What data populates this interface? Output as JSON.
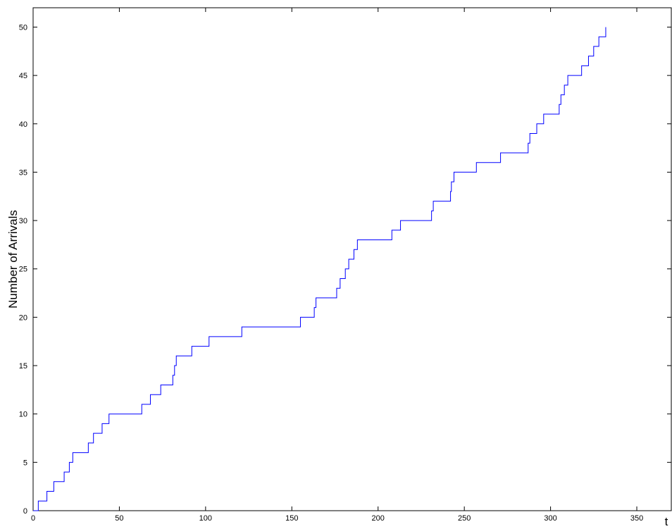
{
  "chart_data": {
    "type": "line",
    "step": true,
    "xlabel": "t",
    "ylabel": "Number of Arrivals",
    "xlim": [
      0,
      370
    ],
    "ylim": [
      0,
      52
    ],
    "xticks": [
      0,
      50,
      100,
      150,
      200,
      250,
      300,
      350
    ],
    "yticks": [
      0,
      5,
      10,
      15,
      20,
      25,
      30,
      35,
      40,
      45,
      50
    ],
    "grid": false,
    "colors": {
      "line": "#0000ff",
      "axes": "#000000",
      "background": "#ffffff"
    },
    "series": [
      {
        "x": [
          0,
          3,
          8,
          12,
          18,
          21,
          23,
          32,
          35,
          40,
          44,
          63,
          68,
          74,
          81,
          82,
          83,
          92,
          102,
          121,
          155,
          163,
          164,
          176,
          178,
          181,
          183,
          186,
          188,
          189,
          208,
          213,
          231,
          232,
          242,
          242.5,
          243,
          244,
          257,
          271,
          287,
          288,
          292,
          296,
          305,
          306,
          308,
          310,
          318,
          322,
          325,
          328,
          332
        ],
        "y": [
          0,
          1,
          2,
          3,
          4,
          5,
          6,
          7,
          8,
          9,
          10,
          11,
          12,
          13,
          14,
          15,
          16,
          17,
          18,
          19,
          20,
          21,
          22,
          23,
          24,
          25,
          26,
          27,
          28,
          28,
          29,
          30,
          31,
          32,
          33,
          34,
          34,
          35,
          36,
          37,
          38,
          39,
          40,
          41,
          42,
          43,
          44,
          45,
          46,
          47,
          48,
          49,
          50
        ]
      }
    ]
  }
}
